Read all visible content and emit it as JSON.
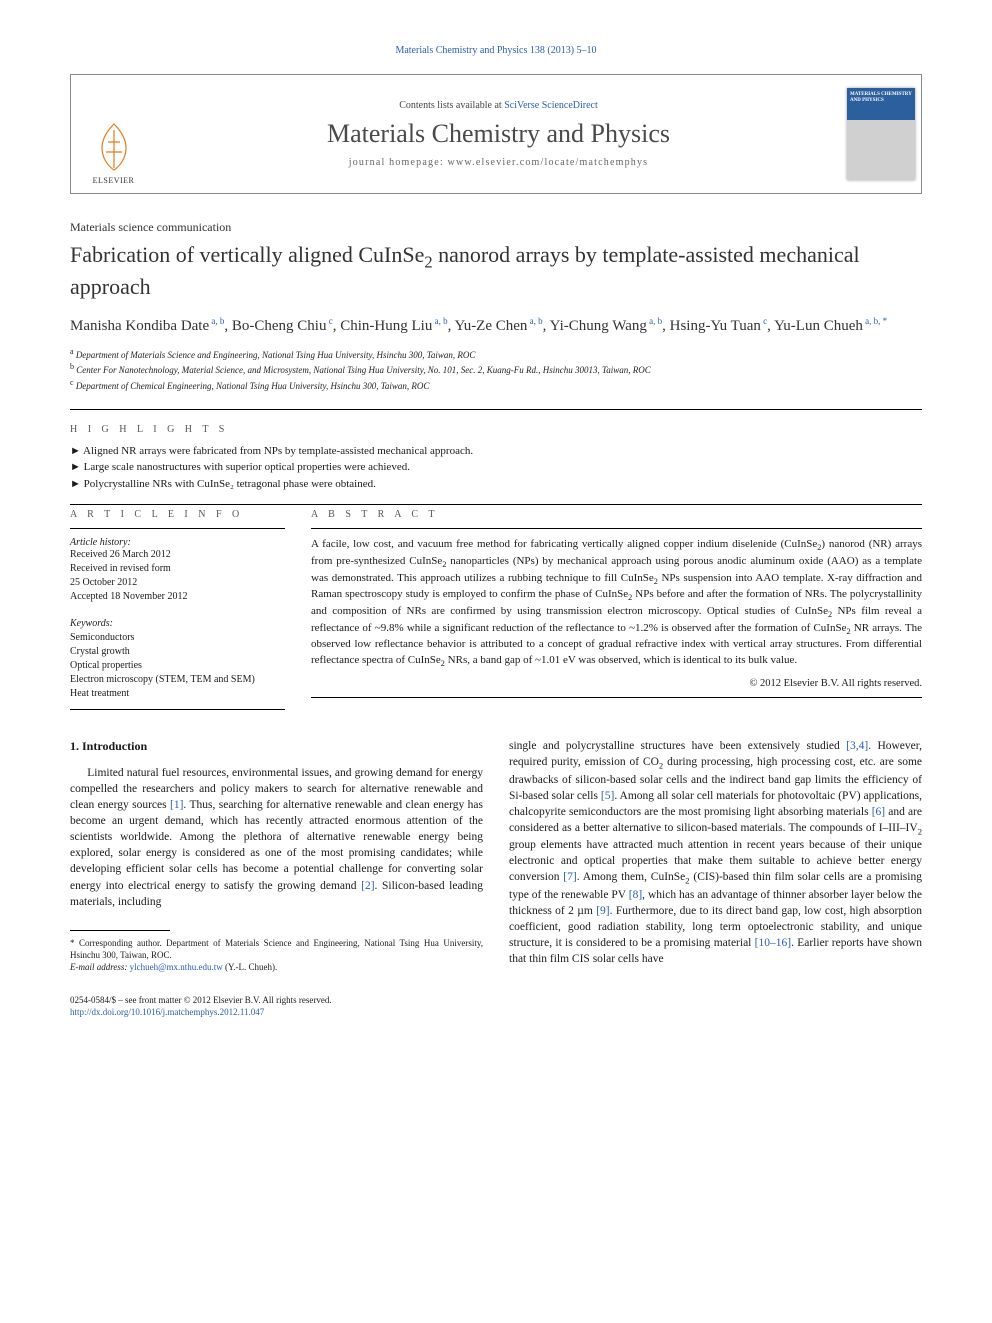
{
  "running_head": "Materials Chemistry and Physics 138 (2013) 5–10",
  "masthead": {
    "contents_prefix": "Contents lists available at ",
    "contents_link": "SciVerse ScienceDirect",
    "journal": "Materials Chemistry and Physics",
    "homepage_label": "journal homepage: ",
    "homepage_url": "www.elsevier.com/locate/matchemphys",
    "publisher": "ELSEVIER",
    "cover_text": "MATERIALS CHEMISTRY AND PHYSICS"
  },
  "article": {
    "doc_type": "Materials science communication",
    "title_html": "Fabrication of vertically aligned CuInSe<sub>2</sub> nanorod arrays by template-assisted mechanical approach",
    "authors_html": "Manisha Kondiba Date<sup> a, b</sup>, Bo-Cheng Chiu<sup> c</sup>, Chin-Hung Liu<sup> a, b</sup>, Yu-Ze Chen<sup> a, b</sup>, Yi-Chung Wang<sup> a, b</sup>, Hsing-Yu Tuan<sup> c</sup>, Yu-Lun Chueh<sup> a, b, <span class=\"star\">*</span></sup>",
    "affiliations": [
      "Department of Materials Science and Engineering, National Tsing Hua University, Hsinchu 300, Taiwan, ROC",
      "Center For Nanotechnology, Material Science, and Microsystem, National Tsing Hua University, No. 101, Sec. 2, Kuang-Fu Rd., Hsinchu 30013, Taiwan, ROC",
      "Department of Chemical Engineering, National Tsing Hua University, Hsinchu 300, Taiwan, ROC"
    ],
    "aff_markers": [
      "a",
      "b",
      "c"
    ]
  },
  "highlights": {
    "label": "H I G H L I G H T S",
    "items": [
      "Aligned NR arrays were fabricated from NPs by template-assisted mechanical approach.",
      "Large scale nanostructures with superior optical properties were achieved.",
      "Polycrystalline NRs with CuInSe₂ tetragonal phase were obtained."
    ]
  },
  "info": {
    "label": "A R T I C L E   I N F O",
    "history_label": "Article history:",
    "history": [
      "Received 26 March 2012",
      "Received in revised form",
      "25 October 2012",
      "Accepted 18 November 2012"
    ],
    "kw_label": "Keywords:",
    "keywords": [
      "Semiconductors",
      "Crystal growth",
      "Optical properties",
      "Electron microscopy (STEM, TEM and SEM)",
      "Heat treatment"
    ]
  },
  "abstract": {
    "label": "A B S T R A C T",
    "text_html": "A facile, low cost, and vacuum free method for fabricating vertically aligned copper indium diselenide (CuInSe<sub>2</sub>) nanorod (NR) arrays from pre-synthesized CuInSe<sub>2</sub> nanoparticles (NPs) by mechanical approach using porous anodic aluminum oxide (AAO) as a template was demonstrated. This approach utilizes a rubbing technique to fill CuInSe<sub>2</sub> NPs suspension into AAO template. X-ray diffraction and Raman spectroscopy study is employed to confirm the phase of CuInSe<sub>2</sub> NPs before and after the formation of NRs. The polycrystallinity and composition of NRs are confirmed by using transmission electron microscopy. Optical studies of CuInSe<sub>2</sub> NPs film reveal a reflectance of ~9.8% while a significant reduction of the reflectance to ~1.2% is observed after the formation of CuInSe<sub>2</sub> NR arrays. The observed low reflectance behavior is attributed to a concept of gradual refractive index with vertical array structures. From differential reflectance spectra of CuInSe<sub>2</sub> NRs, a band gap of ~1.01 eV was observed, which is identical to its bulk value.",
    "copyright": "© 2012 Elsevier B.V. All rights reserved."
  },
  "body": {
    "heading": "1. Introduction",
    "col1_html": "Limited natural fuel resources, environmental issues, and growing demand for energy compelled the researchers and policy makers to search for alternative renewable and clean energy sources <span class=\"ref-link\">[1]</span>. Thus, searching for alternative renewable and clean energy has become an urgent demand, which has recently attracted enormous attention of the scientists worldwide. Among the plethora of alternative renewable energy being explored, solar energy is considered as one of the most promising candidates; while developing efficient solar cells has become a potential challenge for converting solar energy into electrical energy to satisfy the growing demand <span class=\"ref-link\">[2]</span>. Silicon-based leading materials, including",
    "col2_html": "single and polycrystalline structures have been extensively studied <span class=\"ref-link\">[3,4]</span>. However, required purity, emission of CO<sub>2</sub> during processing, high processing cost, etc. are some drawbacks of silicon-based solar cells and the indirect band gap limits the efficiency of Si-based solar cells <span class=\"ref-link\">[5]</span>. Among all solar cell materials for photovoltaic (PV) applications, chalcopyrite semiconductors are the most promising light absorbing materials <span class=\"ref-link\">[6]</span> and are considered as a better alternative to silicon-based materials. The compounds of I–III–IV<sub>2</sub> group elements have attracted much attention in recent years because of their unique electronic and optical properties that make them suitable to achieve better energy conversion <span class=\"ref-link\">[7]</span>. Among them, CuInSe<sub>2</sub> (CIS)-based thin film solar cells are a promising type of the renewable PV <span class=\"ref-link\">[8]</span>, which has an advantage of thinner absorber layer below the thickness of 2 µm <span class=\"ref-link\">[9]</span>. Furthermore, due to its direct band gap, low cost, high absorption coefficient, good radiation stability, long term optoelectronic stability, and unique structure, it is considered to be a promising material <span class=\"ref-link\">[10–16]</span>. Earlier reports have shown that thin film CIS solar cells have"
  },
  "footnote": {
    "corr_html": "* Corresponding author. Department of Materials Science and Engineering, National Tsing Hua University, Hsinchu 300, Taiwan, ROC.",
    "email_label": "E-mail address:",
    "email": "ylchueh@mx.nthu.edu.tw",
    "email_suffix": "(Y.-L. Chueh)."
  },
  "bottom": {
    "line1": "0254-0584/$ – see front matter © 2012 Elsevier B.V. All rights reserved.",
    "doi": "http://dx.doi.org/10.1016/j.matchemphys.2012.11.047"
  },
  "colors": {
    "link": "#2a5db0",
    "text": "#1a1a1a",
    "cover_top": "#2b5f9e"
  }
}
